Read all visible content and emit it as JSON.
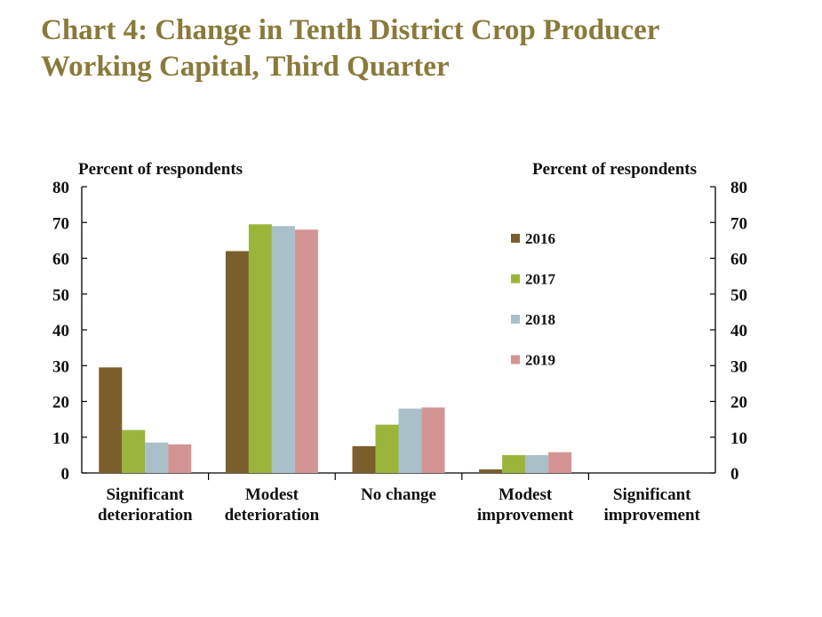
{
  "title_line1": "Chart 4: Change in Tenth District Crop Producer",
  "title_line2": "Working Capital, Third Quarter",
  "chart_data": {
    "type": "bar",
    "title": "Chart 4: Change in Tenth District Crop Producer Working Capital, Third Quarter",
    "ylabel_left": "Percent of respondents",
    "ylabel_right": "Percent of respondents",
    "ylim": [
      0,
      80
    ],
    "yticks": [
      0,
      10,
      20,
      30,
      40,
      50,
      60,
      70,
      80
    ],
    "categories": [
      [
        "Significant",
        "deterioration"
      ],
      [
        "Modest",
        "deterioration"
      ],
      [
        "No change"
      ],
      [
        "Modest",
        "improvement"
      ],
      [
        "Significant",
        "improvement"
      ]
    ],
    "series": [
      {
        "name": "2016",
        "color": "#7a5f2c",
        "values": [
          29.5,
          62,
          7.5,
          1,
          0
        ]
      },
      {
        "name": "2017",
        "color": "#9bb53c",
        "values": [
          12,
          69.5,
          13.5,
          5,
          0
        ]
      },
      {
        "name": "2018",
        "color": "#a9c0c8",
        "values": [
          8.5,
          69,
          18,
          5,
          0
        ]
      },
      {
        "name": "2019",
        "color": "#d49494",
        "values": [
          8,
          68,
          18.3,
          5.8,
          0
        ]
      }
    ],
    "legend_position": "top-right",
    "grid": false
  }
}
